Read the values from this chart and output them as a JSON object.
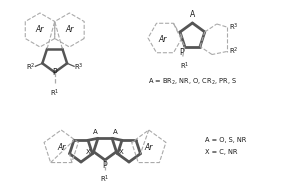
{
  "background_color": "#ffffff",
  "text_color": "#1a1a1a",
  "dashed_color": "#aaaaaa",
  "bold_color": "#555555",
  "figsize": [
    2.81,
    1.89
  ],
  "dpi": 100,
  "label_A_eq": "A = BR$_2$, NR, O, CR$_2$, PR, S",
  "label_A_eq2": "A = O, S, NR",
  "label_X_eq": "X = C, NR"
}
